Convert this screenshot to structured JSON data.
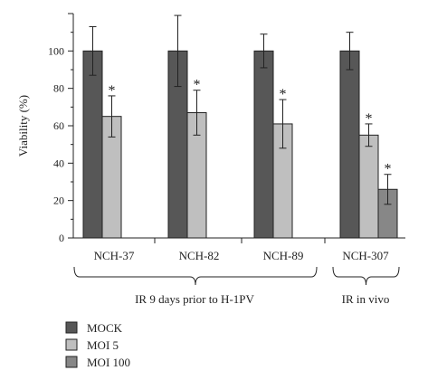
{
  "chart_data": {
    "type": "bar",
    "ylabel": "Viability (%)",
    "ylim": [
      0,
      120
    ],
    "yticks": [
      0,
      20,
      40,
      60,
      80,
      100
    ],
    "categories": [
      "NCH-37",
      "NCH-82",
      "NCH-89",
      "NCH-307"
    ],
    "series": [
      {
        "name": "MOCK",
        "color": "#575757",
        "values": [
          100,
          100,
          100,
          100
        ],
        "errors": [
          13,
          19,
          9,
          10
        ],
        "significant": [
          false,
          false,
          false,
          false
        ]
      },
      {
        "name": "MOI 5",
        "color": "#bfbfbf",
        "values": [
          65,
          67,
          61,
          55
        ],
        "errors": [
          11,
          12,
          13,
          6
        ],
        "significant": [
          true,
          true,
          true,
          true
        ]
      },
      {
        "name": "MOI 100",
        "color": "#878787",
        "values": [
          null,
          null,
          null,
          26
        ],
        "errors": [
          null,
          null,
          null,
          8
        ],
        "significant": [
          false,
          false,
          false,
          true
        ]
      }
    ],
    "significance_marker": "*",
    "groups": [
      {
        "label": "IR 9 days prior to H-1PV",
        "categories": [
          "NCH-37",
          "NCH-82",
          "NCH-89"
        ]
      },
      {
        "label": "IR in vivo",
        "categories": [
          "NCH-307"
        ]
      }
    ],
    "legend_position": "bottom-left"
  }
}
